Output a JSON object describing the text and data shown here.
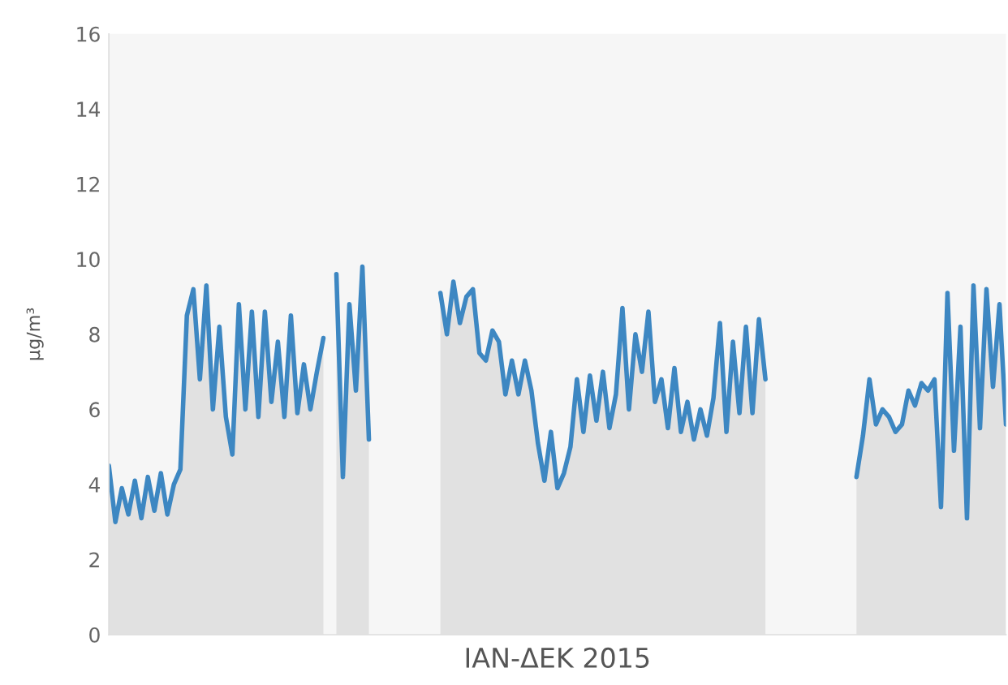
{
  "chart_data": {
    "type": "area",
    "xlabel": "ΙΑΝ-ΔΕΚ 2015",
    "ylabel": "μg/m³",
    "categories": [
      null,
      null,
      null,
      null,
      null,
      null,
      null,
      null,
      null,
      null,
      null,
      null,
      null,
      null,
      null,
      null,
      null,
      null,
      null,
      null,
      null,
      null,
      null,
      null,
      null,
      null,
      null,
      null,
      null,
      null,
      null,
      null,
      null,
      null,
      null,
      null,
      null,
      null,
      null,
      null,
      null,
      null,
      null,
      null,
      null,
      null,
      null,
      null,
      null,
      null,
      null,
      null,
      null,
      null,
      null,
      null,
      null,
      null,
      null,
      null,
      null,
      null,
      null,
      null,
      null,
      null,
      null,
      null,
      null,
      null,
      null,
      null,
      null,
      null,
      null,
      null,
      null,
      null,
      null,
      null,
      null,
      null,
      null,
      null,
      null,
      null,
      null,
      null,
      null,
      null,
      null,
      null,
      null,
      null,
      null,
      null,
      null,
      null,
      null,
      null,
      null,
      null,
      null,
      null,
      null,
      null,
      null,
      null,
      null,
      null,
      null,
      null,
      null,
      null,
      null,
      null,
      null,
      null,
      null,
      null,
      null,
      null,
      null,
      null,
      null,
      null,
      null,
      null,
      null,
      null,
      null,
      null,
      null,
      null,
      null,
      null,
      null,
      null,
      null
    ],
    "series": [
      {
        "color": "#3d87c2",
        "values": [
          4.5,
          3.0,
          3.9,
          3.2,
          4.1,
          3.1,
          4.2,
          3.3,
          4.3,
          3.2,
          4.0,
          4.4,
          8.5,
          9.2,
          6.8,
          9.3,
          6.0,
          8.2,
          5.8,
          4.8,
          8.8,
          6.0,
          8.6,
          5.8,
          8.6,
          6.2,
          7.8,
          5.8,
          8.5,
          5.9,
          7.2,
          6.0,
          7.0,
          7.9,
          null,
          9.6,
          4.2,
          8.8,
          6.5,
          9.8,
          5.2,
          null,
          null,
          null,
          null,
          null,
          null,
          null,
          null,
          null,
          null,
          9.1,
          8.0,
          9.4,
          8.3,
          9.0,
          9.2,
          7.5,
          7.3,
          8.1,
          7.8,
          6.4,
          7.3,
          6.4,
          7.3,
          6.5,
          5.1,
          4.1,
          5.4,
          3.9,
          4.3,
          5.0,
          6.8,
          5.4,
          6.9,
          5.7,
          7.0,
          5.5,
          6.4,
          8.7,
          6.0,
          8.0,
          7.0,
          8.6,
          6.2,
          6.8,
          5.5,
          7.1,
          5.4,
          6.2,
          5.2,
          6.0,
          5.3,
          6.3,
          8.3,
          5.4,
          7.8,
          5.9,
          8.2,
          5.9,
          8.4,
          6.8,
          null,
          null,
          null,
          null,
          null,
          null,
          null,
          null,
          null,
          null,
          null,
          null,
          null,
          4.2,
          5.3,
          6.8,
          5.6,
          6.0,
          5.8,
          5.4,
          5.6,
          6.5,
          6.1,
          6.7,
          6.5,
          6.8,
          3.4,
          9.1,
          4.9,
          8.2,
          3.1,
          9.3,
          5.5,
          9.2,
          6.6,
          8.8,
          5.6
        ]
      }
    ],
    "ylim": [
      0,
      16
    ],
    "yticks": [
      0,
      2,
      4,
      6,
      8,
      10,
      12,
      14,
      16
    ],
    "grid": false
  }
}
